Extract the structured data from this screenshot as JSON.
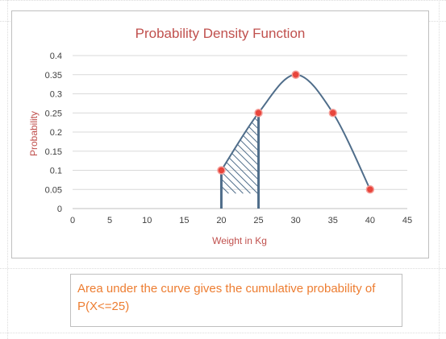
{
  "chart_data": {
    "type": "scatter",
    "title": "Probability Density Function",
    "xlabel": "Weight in Kg",
    "ylabel": "Probability",
    "xlim": [
      0,
      45
    ],
    "ylim": [
      0,
      0.4
    ],
    "x_ticks": [
      0,
      5,
      10,
      15,
      20,
      25,
      30,
      35,
      40,
      45
    ],
    "x_tick_labels": [
      "0",
      "5",
      "10",
      "15",
      "20",
      "25",
      "30",
      "35",
      "40",
      "45"
    ],
    "y_ticks": [
      0,
      0.05,
      0.1,
      0.15,
      0.2,
      0.25,
      0.3,
      0.35,
      0.4
    ],
    "y_tick_labels": [
      "0",
      "0.05",
      "0.1",
      "0.15",
      "0.2",
      "0.25",
      "0.3",
      "0.35",
      "0.4"
    ],
    "grid": true,
    "legend": "none",
    "series": [
      {
        "x": [
          20,
          25,
          30,
          35,
          40
        ],
        "y": [
          0.1,
          0.25,
          0.35,
          0.25,
          0.05
        ],
        "line": "smooth",
        "line_color": "#4f6d8a",
        "marker_color": "#e8453c"
      }
    ],
    "shaded_region": {
      "x_from": 20,
      "x_to": 25,
      "pattern": "diagonal-hatch"
    }
  },
  "note": {
    "text": "Area under the curve gives the cumulative probability of P(X<=25)"
  },
  "colors": {
    "title": "#c0504d",
    "axis_title": "#c0504d",
    "note_text": "#ed7d31",
    "curve": "#4f6d8a",
    "marker": "#e8453c"
  }
}
